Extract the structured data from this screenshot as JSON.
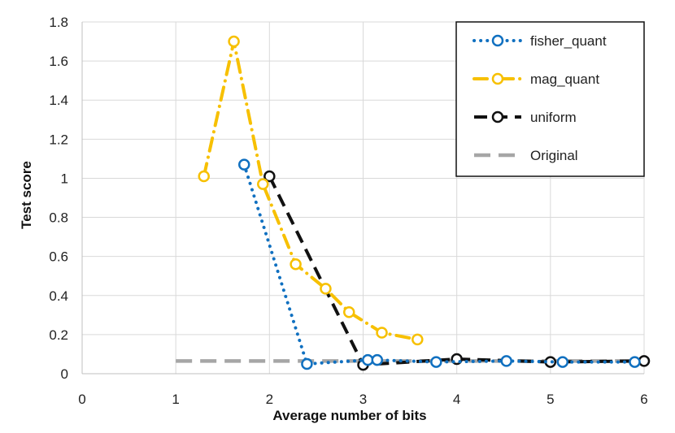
{
  "chart_data": {
    "type": "line",
    "title": "",
    "xlabel": "Average number of bits",
    "ylabel": "Test score",
    "xlim": [
      0,
      6
    ],
    "ylim": [
      0,
      1.8
    ],
    "xticks": [
      "0",
      "1",
      "2",
      "3",
      "4",
      "5",
      "6"
    ],
    "yticks": [
      "0",
      "0.2",
      "0.4",
      "0.6",
      "0.8",
      "1",
      "1.2",
      "1.4",
      "1.6",
      "1.8"
    ],
    "grid": true,
    "legend_position": "top-right",
    "series": [
      {
        "name": "fisher_quant",
        "color": "#1070c0",
        "style": "dotted",
        "markers": true,
        "points": [
          [
            1.73,
            1.07
          ],
          [
            2.4,
            0.05
          ],
          [
            3.05,
            0.07
          ],
          [
            3.15,
            0.07
          ],
          [
            3.78,
            0.06
          ],
          [
            4.53,
            0.065
          ],
          [
            5.13,
            0.06
          ],
          [
            5.9,
            0.06
          ]
        ]
      },
      {
        "name": "mag_quant",
        "color": "#f7c000",
        "style": "dashdot",
        "markers": true,
        "points": [
          [
            1.3,
            1.01
          ],
          [
            1.62,
            1.7
          ],
          [
            1.93,
            0.97
          ],
          [
            2.28,
            0.56
          ],
          [
            2.6,
            0.435
          ],
          [
            2.85,
            0.315
          ],
          [
            3.2,
            0.21
          ],
          [
            3.58,
            0.175
          ]
        ]
      },
      {
        "name": "uniform",
        "color": "#111111",
        "style": "dashed",
        "markers": true,
        "points": [
          [
            2.0,
            1.01
          ],
          [
            3.0,
            0.045
          ],
          [
            4.0,
            0.075
          ],
          [
            5.0,
            0.06
          ],
          [
            6.0,
            0.065
          ]
        ]
      },
      {
        "name": "Original",
        "color": "#a6a6a6",
        "style": "longdash",
        "markers": false,
        "points": [
          [
            1.0,
            0.065
          ],
          [
            6.0,
            0.065
          ]
        ]
      }
    ]
  }
}
